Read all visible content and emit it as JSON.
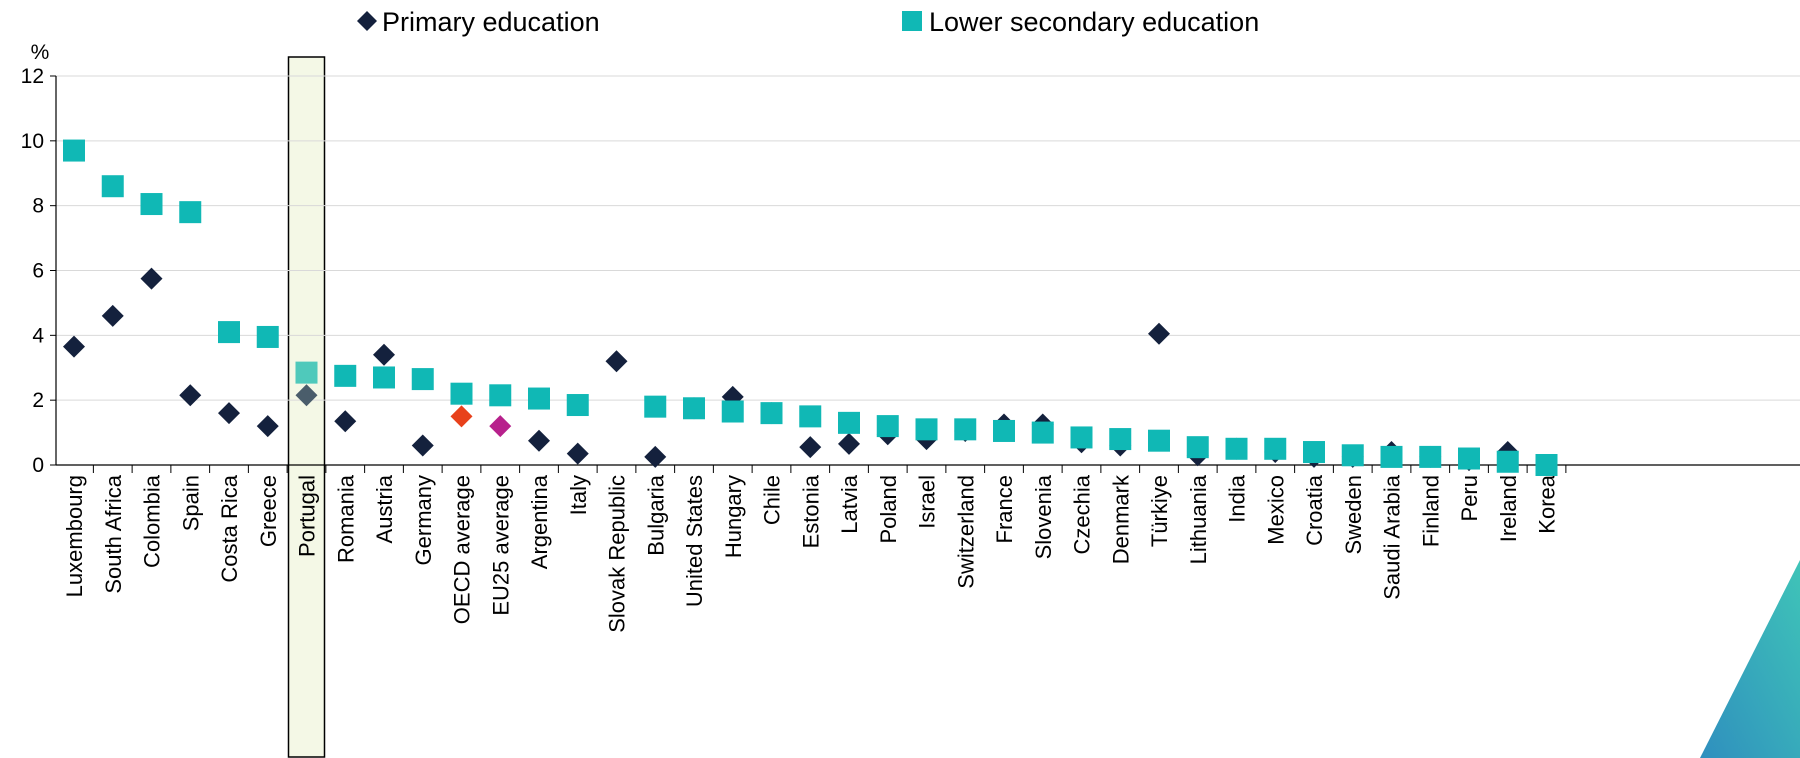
{
  "chart_data": {
    "type": "scatter",
    "y_unit_label": "%",
    "ylim": [
      0,
      12
    ],
    "yticks": [
      0,
      2,
      4,
      6,
      8,
      10,
      12
    ],
    "grid": "horizontal",
    "legend_position": "top",
    "highlight_category": "Portugal",
    "categories": [
      "Luxembourg",
      "South Africa",
      "Colombia",
      "Spain",
      "Costa Rica",
      "Greece",
      "Portugal",
      "Romania",
      "Austria",
      "Germany",
      "OECD average",
      "EU25 average",
      "Argentina",
      "Italy",
      "Slovak Republic",
      "Bulgaria",
      "United States",
      "Hungary",
      "Chile",
      "Estonia",
      "Latvia",
      "Poland",
      "Israel",
      "Switzerland",
      "France",
      "Slovenia",
      "Czechia",
      "Denmark",
      "Türkiye",
      "Lithuania",
      "India",
      "Mexico",
      "Croatia",
      "Sweden",
      "Saudi Arabia",
      "Finland",
      "Peru",
      "Ireland",
      "Korea"
    ],
    "series": [
      {
        "name": "Primary education",
        "marker": "diamond",
        "color": "#14213D",
        "values": [
          3.65,
          4.6,
          5.75,
          2.15,
          1.6,
          1.2,
          2.15,
          1.35,
          3.4,
          0.6,
          1.5,
          1.2,
          0.75,
          0.35,
          3.2,
          0.25,
          1.75,
          2.1,
          1.6,
          0.55,
          0.65,
          0.95,
          0.8,
          1.05,
          1.25,
          1.25,
          0.7,
          0.6,
          4.05,
          0.3,
          0.5,
          0.4,
          0.25,
          0.25,
          0.4,
          0.25,
          0.15,
          0.4,
          0.0
        ]
      },
      {
        "name": "Lower secondary education",
        "marker": "square",
        "color": "#10B8B5",
        "values": [
          9.7,
          8.6,
          8.05,
          7.8,
          4.1,
          3.95,
          2.85,
          2.75,
          2.7,
          2.65,
          2.2,
          2.15,
          2.05,
          1.85,
          null,
          1.8,
          1.75,
          1.65,
          1.6,
          1.5,
          1.3,
          1.2,
          1.1,
          1.1,
          1.05,
          1.0,
          0.85,
          0.8,
          0.75,
          0.55,
          0.5,
          0.5,
          0.4,
          0.3,
          0.25,
          0.25,
          0.2,
          0.1,
          0.0
        ]
      }
    ],
    "point_colors_primary": {
      "Portugal": "#4A5D6B",
      "OECD average": "#E8411B",
      "EU25 average": "#B7218C"
    },
    "point_colors_secondary": {
      "Portugal": "#4FC9BB"
    }
  },
  "colors": {
    "primary": "#14213D",
    "secondary": "#10B8B5",
    "highlight_fill": "#F4F8E6",
    "grid": "#D9D9D9",
    "corner_accent": "#2F8FBE"
  }
}
